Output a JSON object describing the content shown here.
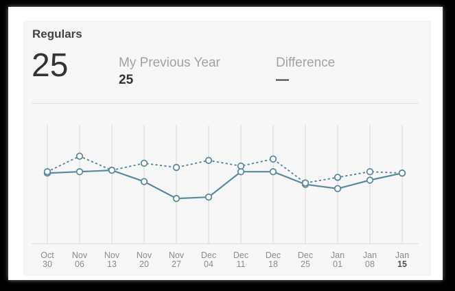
{
  "header": {
    "title": "Regulars",
    "current_value": "25",
    "previous_label": "My Previous Year",
    "previous_value": "25",
    "difference_label": "Difference",
    "difference_value": "—"
  },
  "colors": {
    "series": "#5a8a9c",
    "point_fill": "#ffffff",
    "gridline": "#d8d8d8",
    "card_bg": "#f6f6f7"
  },
  "chart_data": {
    "type": "line",
    "categories": [
      "Oct 30",
      "Nov 06",
      "Nov 13",
      "Nov 20",
      "Nov 27",
      "Dec 04",
      "Dec 11",
      "Dec 18",
      "Dec 25",
      "Jan 01",
      "Jan 08",
      "Jan 15"
    ],
    "tick_labels": [
      [
        "Oct",
        "30"
      ],
      [
        "Nov",
        "06"
      ],
      [
        "Nov",
        "13"
      ],
      [
        "Nov",
        "20"
      ],
      [
        "Nov",
        "27"
      ],
      [
        "Dec",
        "04"
      ],
      [
        "Dec",
        "11"
      ],
      [
        "Dec",
        "18"
      ],
      [
        "Dec",
        "25"
      ],
      [
        "Jan",
        "01"
      ],
      [
        "Jan",
        "08"
      ],
      [
        "Jan",
        "15"
      ]
    ],
    "highlighted_category": "Jan 15",
    "series": [
      {
        "style": "solid",
        "values": [
          25,
          25.5,
          26,
          22,
          16,
          16.5,
          25.5,
          25.5,
          21,
          19.5,
          22.5,
          25
        ]
      },
      {
        "style": "dotted",
        "values": [
          25.5,
          31,
          26,
          28.5,
          27,
          29.5,
          27.5,
          30,
          21.5,
          23.5,
          25.5,
          25
        ]
      }
    ],
    "ylim": [
      0,
      45
    ],
    "grid": true
  }
}
